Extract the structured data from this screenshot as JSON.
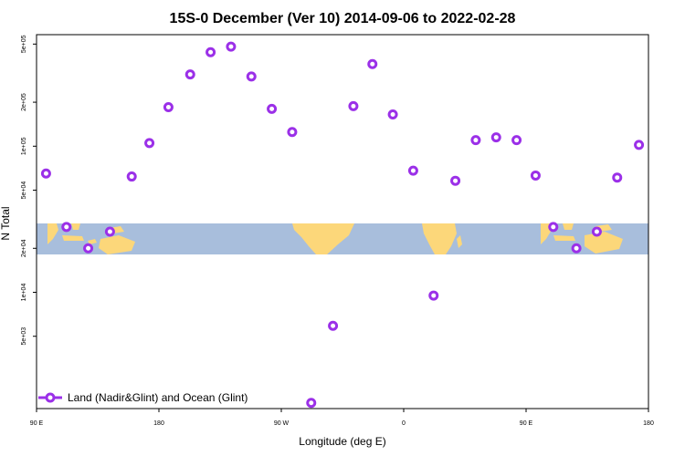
{
  "chart_data": {
    "type": "scatter",
    "title": "15S-0 December (Ver 10)   2014-09-06 to 2022-02-28",
    "xlabel": "Longitude (deg E)",
    "ylabel": "N Total",
    "log_y": true,
    "xlim": [
      90,
      540
    ],
    "ylim": [
      1600,
      580000
    ],
    "grid": false,
    "legend_position": "bottom-left",
    "x_ticks": [
      {
        "value": 90,
        "label": "90 E"
      },
      {
        "value": 180,
        "label": "180"
      },
      {
        "value": 270,
        "label": "90 W"
      },
      {
        "value": 360,
        "label": "0"
      },
      {
        "value": 450,
        "label": "90 E"
      },
      {
        "value": 540,
        "label": "180"
      }
    ],
    "y_ticks": [
      {
        "value": 5000,
        "label": "5e+03"
      },
      {
        "value": 10000,
        "label": "1e+04"
      },
      {
        "value": 20000,
        "label": "2e+04"
      },
      {
        "value": 50000,
        "label": "5e+04"
      },
      {
        "value": 100000,
        "label": "1e+05"
      },
      {
        "value": 200000,
        "label": "2e+05"
      },
      {
        "value": 500000,
        "label": "5e+05"
      }
    ],
    "series": [
      {
        "name": "Land (Nadir&Glint) and Ocean (Glint)",
        "color": "#9B30E8",
        "points": [
          {
            "x": 97,
            "y": 65000
          },
          {
            "x": 112,
            "y": 28000
          },
          {
            "x": 128,
            "y": 20000
          },
          {
            "x": 144,
            "y": 26000
          },
          {
            "x": 160,
            "y": 62000
          },
          {
            "x": 173,
            "y": 105000
          },
          {
            "x": 187,
            "y": 185000
          },
          {
            "x": 203,
            "y": 310000
          },
          {
            "x": 218,
            "y": 440000
          },
          {
            "x": 233,
            "y": 480000
          },
          {
            "x": 248,
            "y": 300000
          },
          {
            "x": 263,
            "y": 180000
          },
          {
            "x": 278,
            "y": 125000
          },
          {
            "x": 292,
            "y": 1750
          },
          {
            "x": 308,
            "y": 5900
          },
          {
            "x": 323,
            "y": 188000
          },
          {
            "x": 337,
            "y": 365000
          },
          {
            "x": 352,
            "y": 165000
          },
          {
            "x": 367,
            "y": 68000
          },
          {
            "x": 382,
            "y": 9500
          },
          {
            "x": 398,
            "y": 58000
          },
          {
            "x": 413,
            "y": 110000
          },
          {
            "x": 428,
            "y": 115000
          },
          {
            "x": 443,
            "y": 110000
          },
          {
            "x": 457,
            "y": 63000
          },
          {
            "x": 470,
            "y": 28000
          },
          {
            "x": 487,
            "y": 20000
          },
          {
            "x": 502,
            "y": 26000
          },
          {
            "x": 517,
            "y": 61000
          },
          {
            "x": 533,
            "y": 102000
          }
        ]
      }
    ]
  }
}
